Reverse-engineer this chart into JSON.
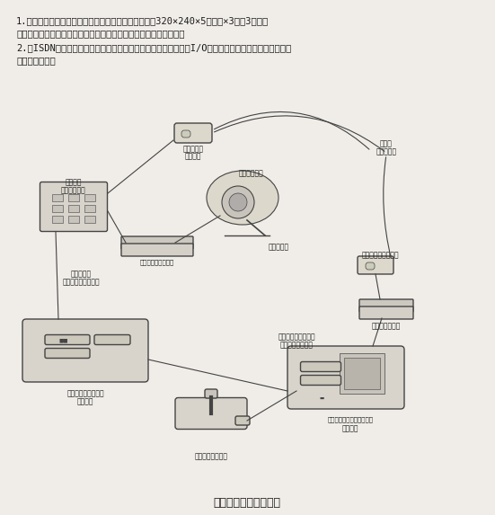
{
  "bg_color": "#f0ede8",
  "text_color": "#1a1a1a",
  "title": "図　遠隔監視システム",
  "line1_1": "1.　画像の転送速度は回線の状況にもよるが、１画面320×240×5ｂｉｔ×3色／3秒程度",
  "line1_2": "　　である。また、コマンド転送速度は数百コマンド／秒である。",
  "line2_1": "2.　ISDNコントローラ、画像入力ボードは市販のものを使い、I/Oボード及びカメラ制御用の雲台は",
  "line2_2": "　　製作した。"
}
